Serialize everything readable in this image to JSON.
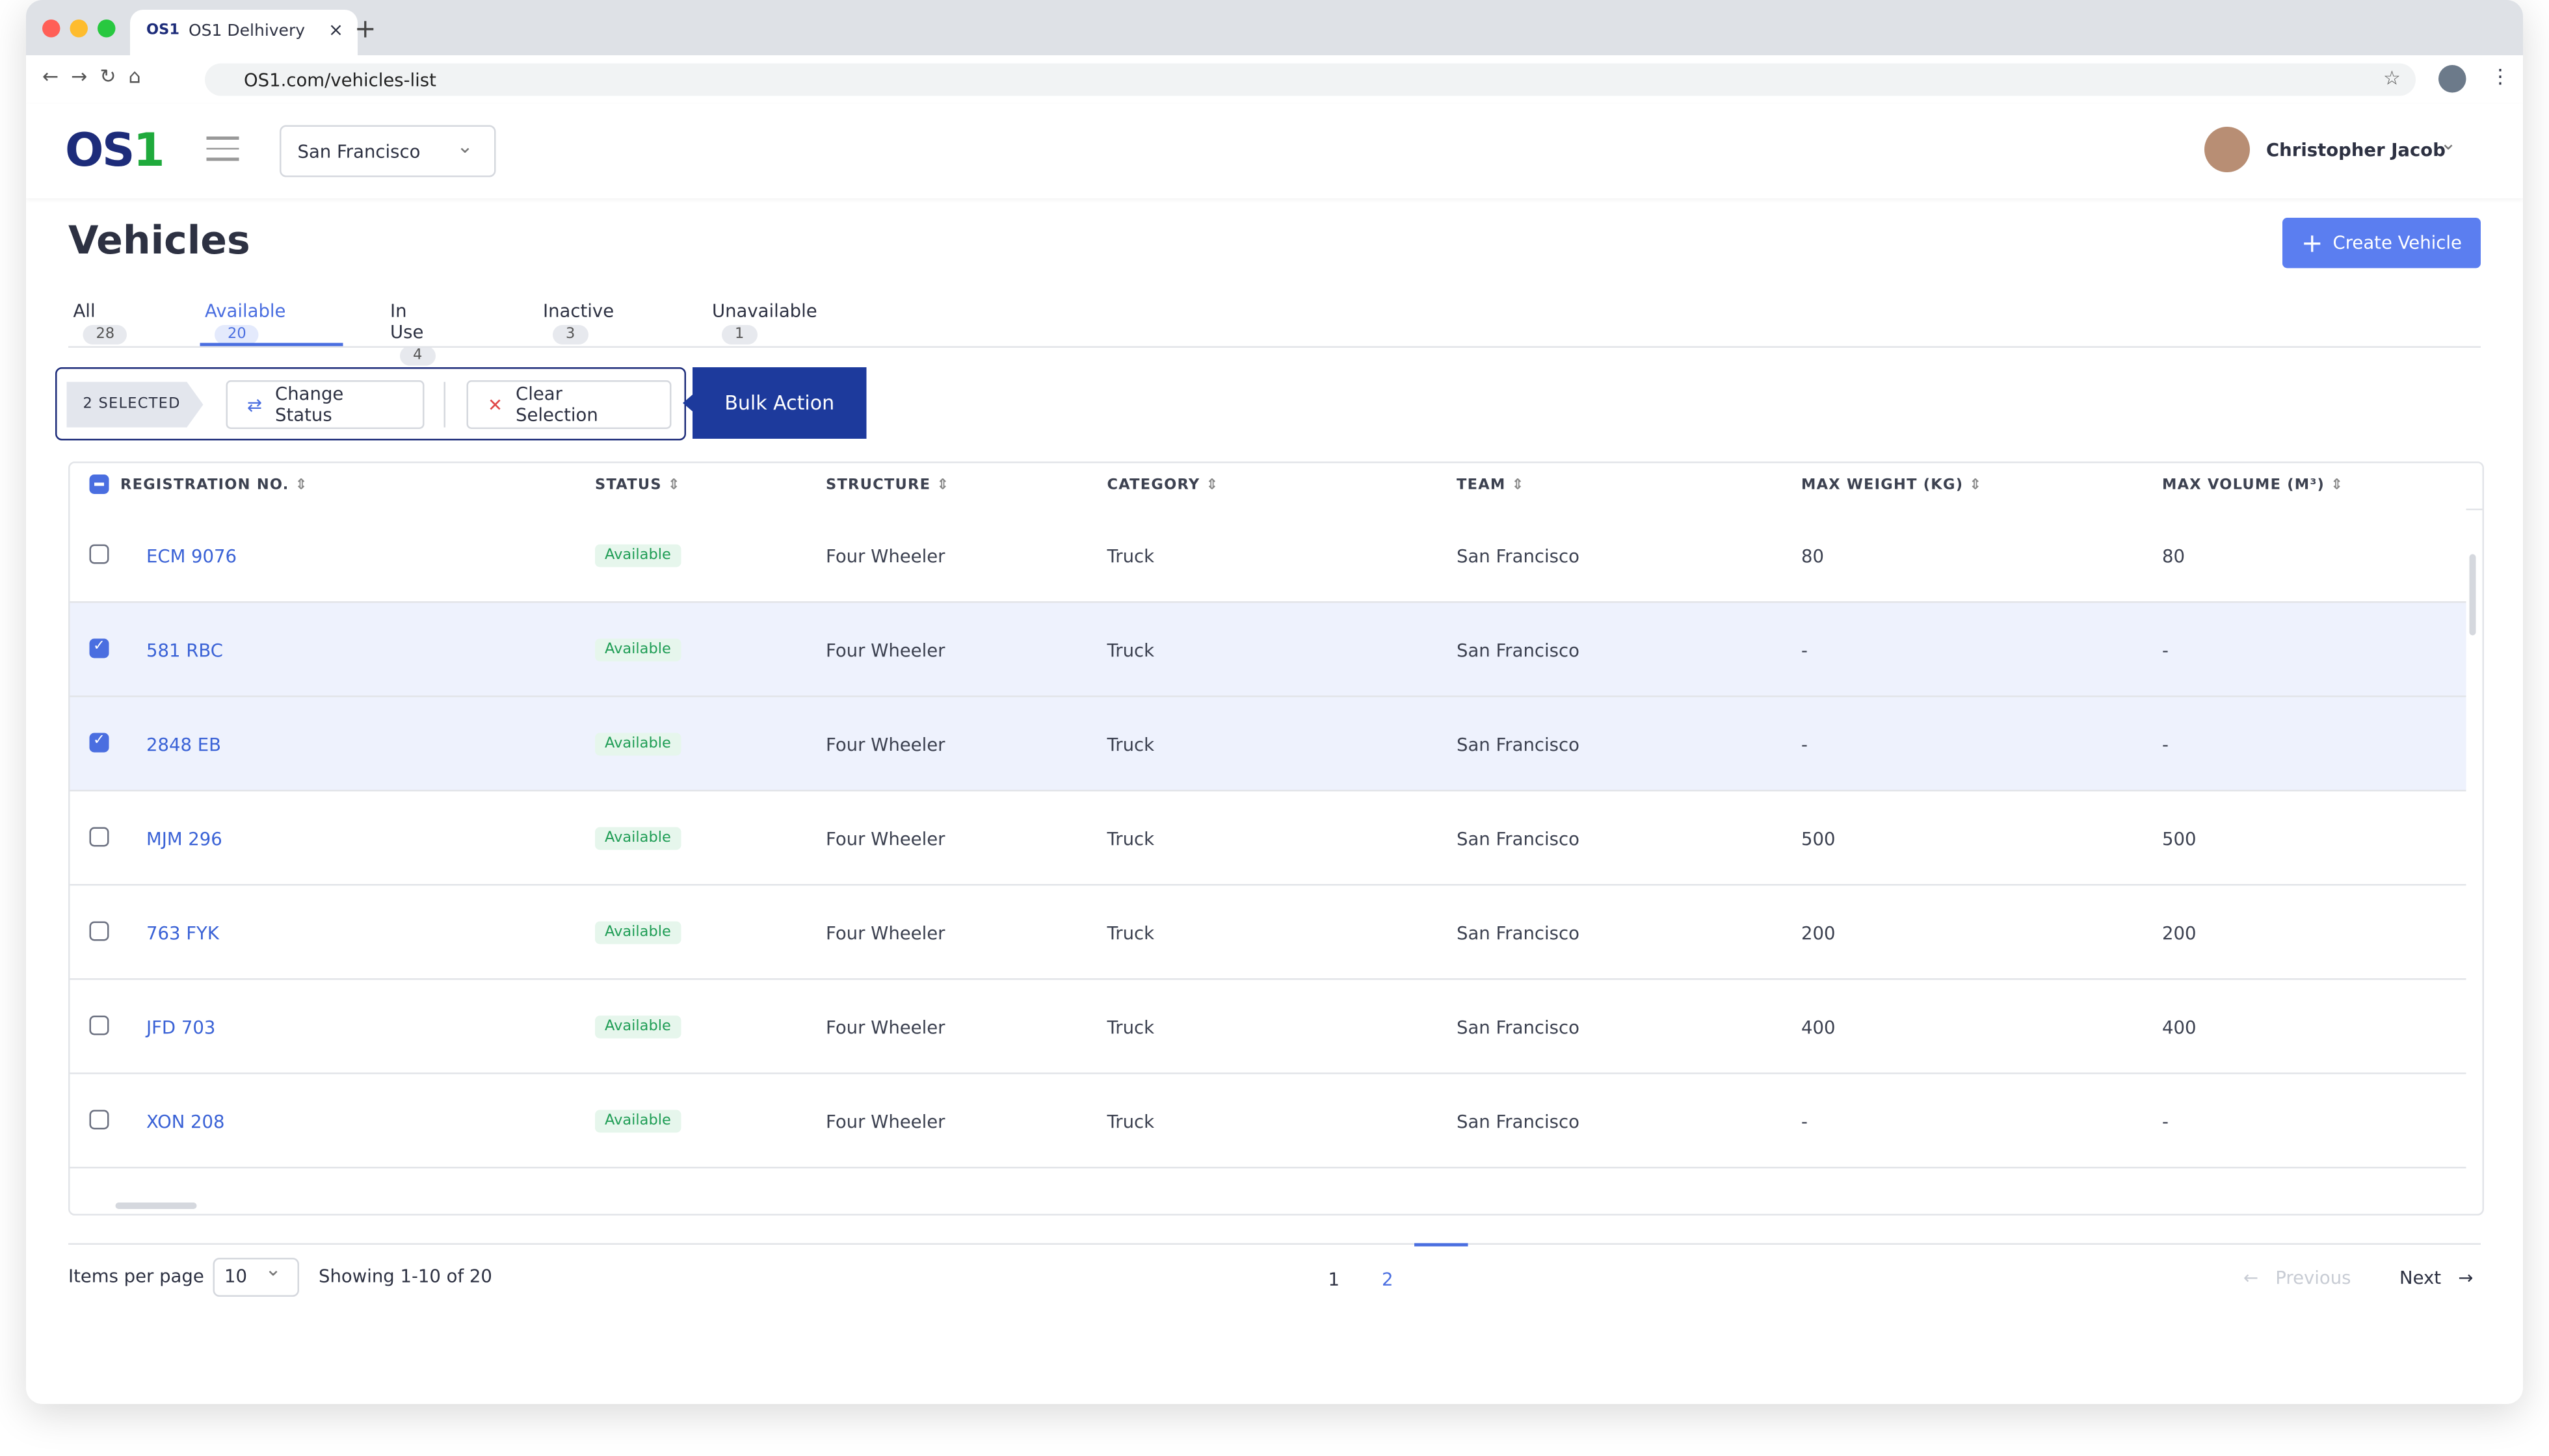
{
  "browser": {
    "tab_logo": "OS1",
    "tab_title": "OS1 Delhivery",
    "url": "OS1.com/vehicles-list"
  },
  "header": {
    "logo": {
      "text": "OS",
      "accent": "1"
    },
    "location": "San Francisco",
    "user": "Christopher Jacob"
  },
  "page": {
    "title": "Vehicles",
    "create_button": "Create Vehicle"
  },
  "tabs": [
    {
      "label": "All",
      "count": "28"
    },
    {
      "label": "Available",
      "count": "20",
      "active": true
    },
    {
      "label": "In Use",
      "count": "4"
    },
    {
      "label": "Inactive",
      "count": "3"
    },
    {
      "label": "Unavailable",
      "count": "1"
    }
  ],
  "selection": {
    "selected": "2 SELECTED",
    "change_status": "Change Status",
    "clear": "Clear Selection",
    "bulk_action": "Bulk Action"
  },
  "table": {
    "columns": [
      "REGISTRATION NO.",
      "STATUS",
      "STRUCTURE",
      "CATEGORY",
      "TEAM",
      "MAX WEIGHT (KG)",
      "MAX VOLUME (M³)"
    ],
    "rows": [
      [
        "ECM 9076",
        "Available",
        "Four Wheeler",
        "Truck",
        "San Francisco",
        "80",
        "80"
      ],
      [
        "581 RBC",
        "Available",
        "Four Wheeler",
        "Truck",
        "San Francisco",
        "-",
        "-"
      ],
      [
        "2848 EB",
        "Available",
        "Four Wheeler",
        "Truck",
        "San Francisco",
        "-",
        "-"
      ],
      [
        "MJM 296",
        "Available",
        "Four Wheeler",
        "Truck",
        "San Francisco",
        "500",
        "500"
      ],
      [
        "763 FYK",
        "Available",
        "Four Wheeler",
        "Truck",
        "San Francisco",
        "200",
        "200"
      ],
      [
        "JFD 703",
        "Available",
        "Four Wheeler",
        "Truck",
        "San Francisco",
        "400",
        "400"
      ],
      [
        "XON 208",
        "Available",
        "Four Wheeler",
        "Truck",
        "San Francisco",
        "-",
        "-"
      ]
    ],
    "checked": [
      false,
      true,
      true,
      false,
      false,
      false,
      false
    ]
  },
  "pagination": {
    "items_label": "Items per page",
    "per_page": "10",
    "showing": "Showing 1-10 of 20",
    "pages": [
      "1",
      "2"
    ],
    "current": 1,
    "previous": "Previous",
    "next": "Next"
  }
}
